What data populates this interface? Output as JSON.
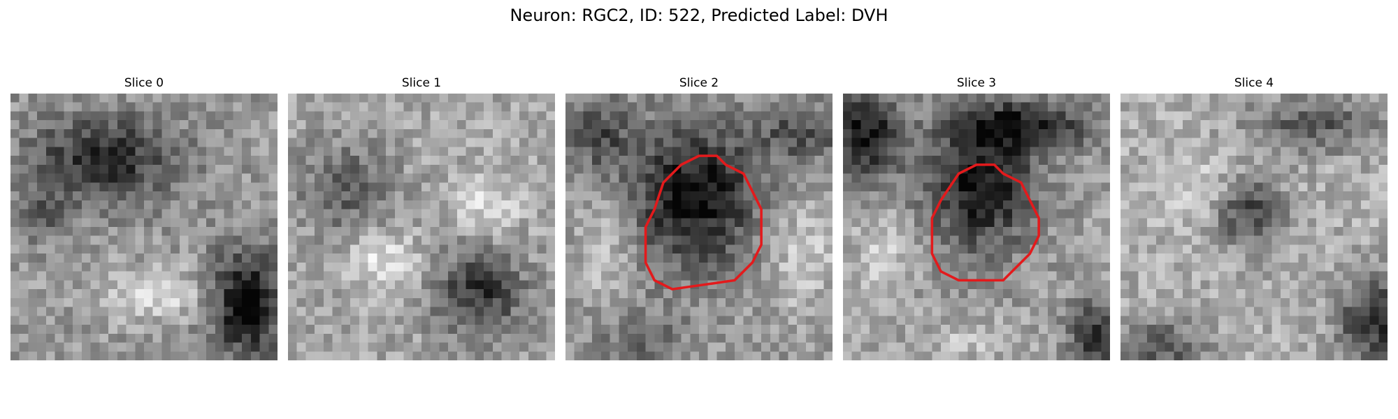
{
  "figure": {
    "title": "Neuron: RGC2, ID: 522, Predicted Label: DVH",
    "panels": [
      {
        "label": "Slice 0",
        "has_contour": false
      },
      {
        "label": "Slice 1",
        "has_contour": false
      },
      {
        "label": "Slice 2",
        "has_contour": true
      },
      {
        "label": "Slice 3",
        "has_contour": true
      },
      {
        "label": "Slice 4",
        "has_contour": false
      }
    ],
    "colormap": "grayscale",
    "contour_color": "#e31a1c"
  }
}
